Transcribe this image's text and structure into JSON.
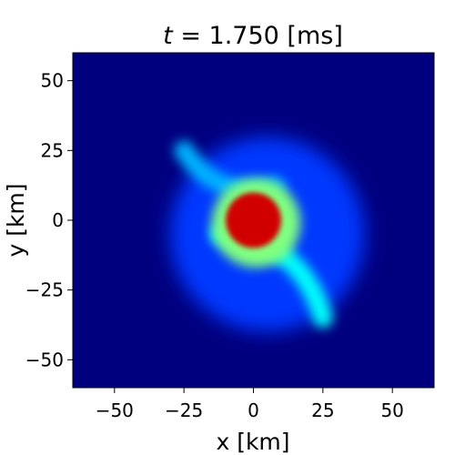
{
  "chart_data": {
    "type": "heatmap",
    "title_var": "t",
    "title_value": "1.750",
    "title_unit": "[ms]",
    "xlabel": "x [km]",
    "ylabel": "y [km]",
    "xlim": [
      -65,
      65
    ],
    "ylim": [
      -60,
      60
    ],
    "xticks": [
      -50,
      -25,
      0,
      25,
      50
    ],
    "yticks": [
      -50,
      -25,
      0,
      25,
      50
    ],
    "xtick_labels": [
      "−50",
      "−25",
      "0",
      "25",
      "50"
    ],
    "ytick_labels": [
      "−50",
      "−25",
      "0",
      "25",
      "50"
    ],
    "colormap": "jet",
    "background_color": "#00007f",
    "colorbar": false,
    "features": [
      {
        "name": "core",
        "center": [
          0,
          0
        ],
        "radius": 10,
        "level": 0.92
      },
      {
        "name": "inner-halo",
        "center": [
          1,
          -1
        ],
        "radius": 16,
        "level": 0.5
      },
      {
        "name": "spiral-arm-south",
        "from": [
          -12,
          -5
        ],
        "to": [
          25,
          -35
        ],
        "level": 0.38
      },
      {
        "name": "spiral-arm-north",
        "from": [
          8,
          12
        ],
        "to": [
          -25,
          25
        ],
        "level": 0.3
      },
      {
        "name": "outer-envelope",
        "center": [
          5,
          -5
        ],
        "radius": 35,
        "level": 0.18
      }
    ]
  }
}
